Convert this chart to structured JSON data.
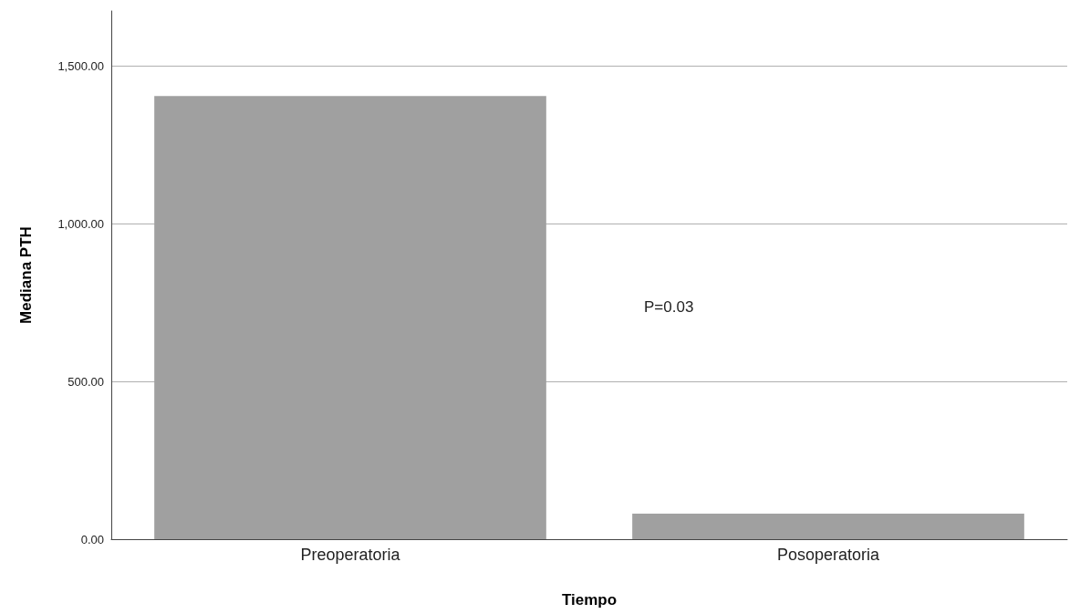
{
  "chart_data": {
    "type": "bar",
    "xlabel": "Tiempo",
    "ylabel": "Mediana PTH",
    "categories": [
      "Preoperatoria",
      "Posoperatoria"
    ],
    "values": [
      1405,
      81
    ],
    "color": "#a0a0a0",
    "ylim": [
      0,
      1675
    ],
    "yticks": [
      {
        "value": 0,
        "label": "0.00"
      },
      {
        "value": 500,
        "label": "500.00"
      },
      {
        "value": 1000,
        "label": "1,000.00"
      },
      {
        "value": 1500,
        "label": "1,500.00"
      }
    ],
    "grid": "y",
    "annotations": [
      "P=0.03"
    ]
  }
}
